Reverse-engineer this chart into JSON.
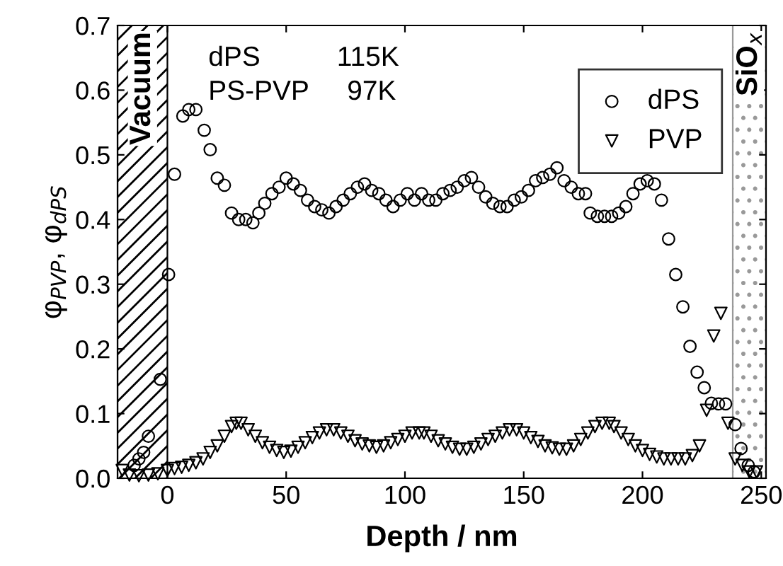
{
  "chart_data": {
    "type": "scatter",
    "xlabel": "Depth / nm",
    "ylabel": "φ$_{PVP}$, φ$_{dPS}$",
    "xlim": [
      -21,
      252
    ],
    "ylim": [
      0,
      0.7
    ],
    "xticks": [
      0,
      50,
      100,
      150,
      200,
      250
    ],
    "yticks": [
      {
        "value": 0,
        "label": "0.0"
      },
      {
        "value": 0.1,
        "label": "0.1"
      },
      {
        "value": 0.2,
        "label": "0.2"
      },
      {
        "value": 0.3,
        "label": "0.3"
      },
      {
        "value": 0.4,
        "label": "0.4"
      },
      {
        "value": 0.5,
        "label": "0.5"
      },
      {
        "value": 0.6,
        "label": "0.6"
      },
      {
        "value": 0.7,
        "label": "0.7"
      }
    ],
    "grid": false,
    "legend": "top right",
    "annotations": [
      "dPS          115K",
      "PS-PVP     97K"
    ],
    "bands": [
      {
        "axis": "x",
        "from": -21,
        "to": 0,
        "label": "Vacuum",
        "color": "#000000"
      },
      {
        "axis": "x",
        "from": 238,
        "to": 252,
        "label": "SiO$_{x}$",
        "color": "#999999"
      }
    ],
    "series": [
      {
        "name": "dPS",
        "color": "#000000",
        "marker": "circle",
        "x": [
          -14,
          -12,
          -10,
          -8,
          -3,
          0.5,
          3,
          6.5,
          9,
          12,
          15.5,
          18,
          21,
          24,
          27,
          30,
          33,
          36,
          38.5,
          41,
          44,
          47,
          50,
          53,
          56,
          59,
          62,
          65,
          68,
          71,
          74,
          77,
          80,
          83,
          86,
          89,
          92,
          95,
          98,
          101,
          104,
          107,
          110,
          113,
          116,
          119,
          122,
          125,
          128,
          131,
          134,
          137,
          140,
          143,
          146,
          149,
          152,
          155,
          158,
          161,
          164,
          167,
          170,
          173,
          176,
          178,
          181,
          184,
          187,
          190,
          193,
          196,
          199,
          202,
          205,
          208,
          211,
          214,
          217,
          220,
          223,
          226,
          229,
          232,
          235,
          239,
          241.5,
          244.5,
          247
        ],
        "values": [
          0.02,
          0.03,
          0.04,
          0.065,
          0.153,
          0.315,
          0.47,
          0.56,
          0.57,
          0.57,
          0.538,
          0.508,
          0.464,
          0.453,
          0.41,
          0.4,
          0.4,
          0.395,
          0.41,
          0.425,
          0.44,
          0.45,
          0.464,
          0.455,
          0.445,
          0.43,
          0.42,
          0.415,
          0.41,
          0.42,
          0.43,
          0.44,
          0.45,
          0.455,
          0.445,
          0.44,
          0.43,
          0.42,
          0.43,
          0.44,
          0.43,
          0.44,
          0.43,
          0.43,
          0.44,
          0.445,
          0.45,
          0.46,
          0.465,
          0.45,
          0.435,
          0.425,
          0.42,
          0.42,
          0.43,
          0.435,
          0.445,
          0.46,
          0.465,
          0.47,
          0.48,
          0.46,
          0.45,
          0.44,
          0.44,
          0.41,
          0.405,
          0.405,
          0.405,
          0.41,
          0.42,
          0.44,
          0.455,
          0.46,
          0.455,
          0.43,
          0.37,
          0.315,
          0.265,
          0.204,
          0.164,
          0.14,
          0.116,
          0.115,
          0.115,
          0.083,
          0.046,
          0.02,
          0.01
        ]
      },
      {
        "name": "PVP",
        "color": "#000000",
        "marker": "triangle",
        "x": [
          -19,
          -16,
          -12,
          -8,
          -4,
          0,
          3,
          6,
          9,
          12,
          15,
          18,
          21,
          24,
          27,
          29,
          31,
          34,
          37,
          40,
          43,
          46,
          49,
          52,
          55,
          58,
          61,
          64,
          67,
          70,
          73,
          76,
          79,
          82,
          85,
          88,
          91,
          94,
          97,
          100,
          103,
          106,
          108,
          111,
          114,
          117,
          120,
          123,
          126,
          129,
          132,
          135,
          138,
          141,
          144,
          147,
          150,
          153,
          156,
          159,
          162,
          165,
          168,
          171,
          174,
          177,
          180,
          183,
          186,
          188,
          191,
          194,
          197,
          200,
          203,
          206,
          209,
          212,
          215,
          218,
          221,
          224,
          227,
          230,
          233,
          236,
          239,
          242,
          245,
          248
        ],
        "values": [
          0.012,
          0.005,
          0.004,
          0.005,
          0.007,
          0.012,
          0.015,
          0.017,
          0.02,
          0.024,
          0.03,
          0.04,
          0.05,
          0.065,
          0.08,
          0.085,
          0.085,
          0.075,
          0.065,
          0.055,
          0.048,
          0.043,
          0.04,
          0.042,
          0.048,
          0.055,
          0.063,
          0.07,
          0.075,
          0.075,
          0.07,
          0.065,
          0.058,
          0.053,
          0.05,
          0.048,
          0.05,
          0.055,
          0.06,
          0.065,
          0.07,
          0.07,
          0.07,
          0.065,
          0.058,
          0.053,
          0.048,
          0.045,
          0.045,
          0.048,
          0.053,
          0.06,
          0.065,
          0.07,
          0.075,
          0.075,
          0.07,
          0.063,
          0.057,
          0.05,
          0.047,
          0.045,
          0.045,
          0.05,
          0.06,
          0.07,
          0.08,
          0.085,
          0.085,
          0.08,
          0.07,
          0.06,
          0.05,
          0.043,
          0.037,
          0.033,
          0.03,
          0.03,
          0.03,
          0.03,
          0.035,
          0.05,
          0.105,
          0.22,
          0.255,
          0.085,
          0.03,
          0.02,
          0.01,
          0.01
        ]
      }
    ]
  }
}
